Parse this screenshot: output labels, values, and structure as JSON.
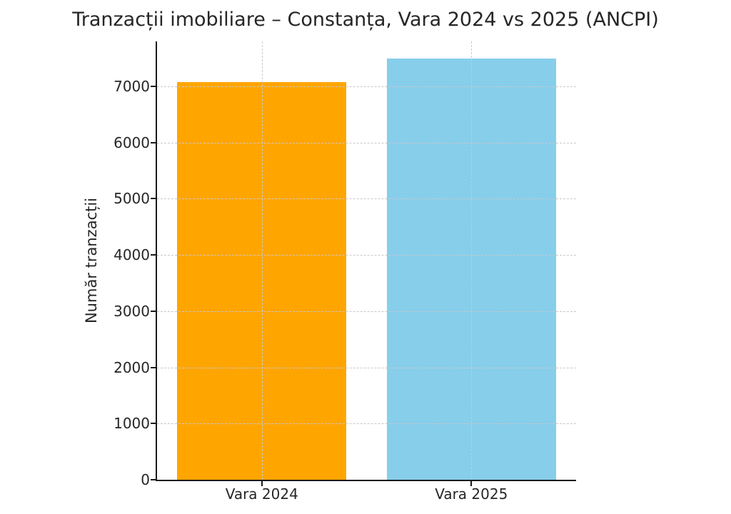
{
  "title": "Tranzacții imobiliare – Constanța, Vara 2024 vs 2025 (ANCPI)",
  "chart_data": {
    "type": "bar",
    "title": "Tranzacții imobiliare – Constanța, Vara 2024 vs 2025 (ANCPI)",
    "categories": [
      "Vara 2024",
      "Vara 2025"
    ],
    "values": [
      7080,
      7500
    ],
    "bar_colors": [
      "#FFA500",
      "#87CEEB"
    ],
    "xlabel": "",
    "ylabel": "Număr tranzacții",
    "ylim": [
      0,
      7800
    ],
    "yticks": [
      0,
      1000,
      2000,
      3000,
      4000,
      5000,
      6000,
      7000
    ],
    "grid": "dashed gridlines on both axes, drawn over bars",
    "legend": "none",
    "colors": {
      "text": "#262626",
      "grid": "#c9c9c9",
      "spine": "#1a1a1a",
      "background": "#ffffff"
    }
  }
}
